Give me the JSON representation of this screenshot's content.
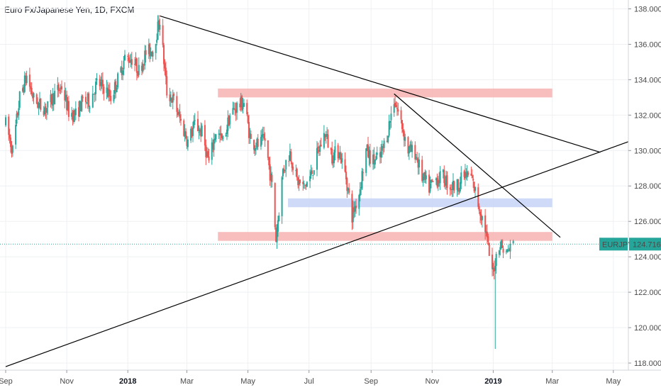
{
  "header": {
    "title": "Euro Fx/Japanese Yen, 1D, FXCM"
  },
  "price_label": {
    "symbol": "EURJPY",
    "value": "124.716"
  },
  "colors": {
    "up": "#26a69a",
    "down": "#ef5350",
    "resistance_zone": "#f7b3b3",
    "support_zone": "#c5d3f7",
    "trendline": "#000000",
    "price_line": "#26a69a",
    "label_bg": "#26a69a",
    "grid": "#eef0f3"
  },
  "chart_data": {
    "type": "candlestick",
    "symbol": "EURJPY",
    "timeframe": "1D",
    "source": "FXCM",
    "x_tick_labels": [
      {
        "label": "Sep",
        "date": "2017-09-01"
      },
      {
        "label": "Nov",
        "date": "2017-11-01"
      },
      {
        "label": "2018",
        "date": "2018-01-01",
        "bold": true
      },
      {
        "label": "Mar",
        "date": "2018-03-01"
      },
      {
        "label": "May",
        "date": "2018-05-01"
      },
      {
        "label": "Jul",
        "date": "2018-07-01"
      },
      {
        "label": "Sep",
        "date": "2018-09-01"
      },
      {
        "label": "Nov",
        "date": "2018-11-01"
      },
      {
        "label": "2019",
        "date": "2019-01-01",
        "bold": true
      },
      {
        "label": "Mar",
        "date": "2019-03-01"
      },
      {
        "label": "May",
        "date": "2019-05-01"
      }
    ],
    "y_tick_labels": [
      "138.000",
      "136.000",
      "134.000",
      "132.000",
      "130.000",
      "128.000",
      "126.000",
      "124.000",
      "122.000",
      "120.000",
      "118.000"
    ],
    "ylim": [
      117.6,
      138.5
    ],
    "xlim": [
      "2017-09-01",
      "2019-05-16"
    ],
    "last_price": 124.716,
    "price_path": [
      [
        "2017-09-01",
        131.5
      ],
      [
        "2017-09-08",
        130.0
      ],
      [
        "2017-09-15",
        133.0
      ],
      [
        "2017-09-22",
        134.2
      ],
      [
        "2017-09-29",
        132.9
      ],
      [
        "2017-10-06",
        132.5
      ],
      [
        "2017-10-13",
        132.4
      ],
      [
        "2017-10-20",
        133.2
      ],
      [
        "2017-10-27",
        133.6
      ],
      [
        "2017-11-03",
        132.2
      ],
      [
        "2017-11-10",
        132.0
      ],
      [
        "2017-11-17",
        132.8
      ],
      [
        "2017-11-24",
        132.8
      ],
      [
        "2017-12-01",
        133.8
      ],
      [
        "2017-12-08",
        133.6
      ],
      [
        "2017-12-15",
        133.0
      ],
      [
        "2017-12-22",
        134.0
      ],
      [
        "2017-12-29",
        135.2
      ],
      [
        "2018-01-05",
        135.2
      ],
      [
        "2018-01-12",
        134.5
      ],
      [
        "2018-01-19",
        135.5
      ],
      [
        "2018-01-26",
        135.7
      ],
      [
        "2018-02-02",
        137.4
      ],
      [
        "2018-02-09",
        133.3
      ],
      [
        "2018-02-16",
        132.8
      ],
      [
        "2018-02-23",
        131.6
      ],
      [
        "2018-03-02",
        130.5
      ],
      [
        "2018-03-09",
        131.5
      ],
      [
        "2018-03-16",
        131.0
      ],
      [
        "2018-03-23",
        129.3
      ],
      [
        "2018-03-30",
        131.1
      ],
      [
        "2018-04-06",
        130.5
      ],
      [
        "2018-04-13",
        132.0
      ],
      [
        "2018-04-20",
        132.5
      ],
      [
        "2018-04-27",
        132.7
      ],
      [
        "2018-05-04",
        130.5
      ],
      [
        "2018-05-11",
        130.3
      ],
      [
        "2018-05-18",
        130.6
      ],
      [
        "2018-05-25",
        128.0
      ],
      [
        "2018-05-29",
        125.0
      ],
      [
        "2018-06-05",
        128.9
      ],
      [
        "2018-06-12",
        129.9
      ],
      [
        "2018-06-19",
        128.3
      ],
      [
        "2018-06-26",
        127.9
      ],
      [
        "2018-07-03",
        128.6
      ],
      [
        "2018-07-10",
        129.9
      ],
      [
        "2018-07-17",
        131.0
      ],
      [
        "2018-07-24",
        129.7
      ],
      [
        "2018-07-31",
        130.0
      ],
      [
        "2018-08-07",
        128.5
      ],
      [
        "2018-08-13",
        126.3
      ],
      [
        "2018-08-20",
        127.6
      ],
      [
        "2018-08-27",
        130.0
      ],
      [
        "2018-09-03",
        129.4
      ],
      [
        "2018-09-10",
        129.6
      ],
      [
        "2018-09-17",
        130.9
      ],
      [
        "2018-09-24",
        132.9
      ],
      [
        "2018-10-01",
        131.6
      ],
      [
        "2018-10-08",
        130.0
      ],
      [
        "2018-10-15",
        129.9
      ],
      [
        "2018-10-22",
        128.5
      ],
      [
        "2018-10-29",
        127.9
      ],
      [
        "2018-11-05",
        128.4
      ],
      [
        "2018-11-12",
        128.5
      ],
      [
        "2018-11-19",
        128.0
      ],
      [
        "2018-11-26",
        128.0
      ],
      [
        "2018-12-03",
        128.6
      ],
      [
        "2018-12-10",
        128.5
      ],
      [
        "2018-12-17",
        127.0
      ],
      [
        "2018-12-24",
        125.6
      ],
      [
        "2018-12-31",
        123.0
      ],
      [
        "2019-01-07",
        124.8
      ],
      [
        "2019-01-14",
        124.2
      ],
      [
        "2019-01-21",
        124.7
      ]
    ],
    "zones": [
      {
        "kind": "resistance",
        "from": "2018-04-01",
        "to": "2019-03-01",
        "y1": 133.0,
        "y2": 133.5
      },
      {
        "kind": "support",
        "from": "2018-06-10",
        "to": "2019-03-01",
        "y1": 126.8,
        "y2": 127.3
      },
      {
        "kind": "resistance",
        "from": "2018-04-01",
        "to": "2019-03-01",
        "y1": 124.9,
        "y2": 125.4
      }
    ],
    "trendlines": [
      {
        "from": [
          "2018-02-02",
          137.6
        ],
        "to": [
          "2019-04-18",
          129.9
        ]
      },
      {
        "from": [
          "2017-09-01",
          117.8
        ],
        "to": [
          "2019-05-16",
          130.5
        ]
      },
      {
        "from": [
          "2018-09-24",
          133.2
        ],
        "to": [
          "2019-03-09",
          125.1
        ]
      }
    ]
  }
}
